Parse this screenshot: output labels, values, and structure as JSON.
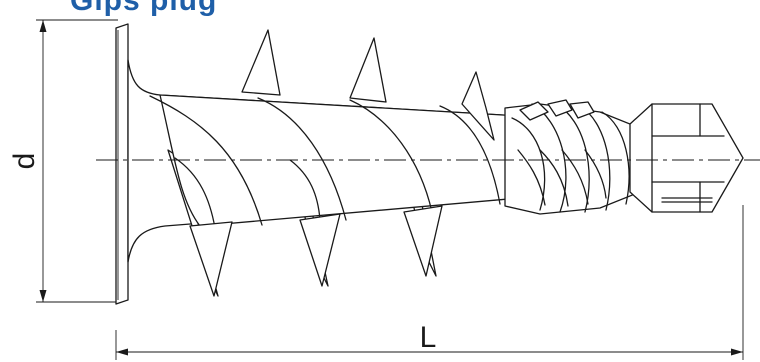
{
  "heading": {
    "text": "Gips plug",
    "color": "#1f5fa8"
  },
  "dimensions": {
    "diameter_label": "d",
    "length_label": "L"
  }
}
